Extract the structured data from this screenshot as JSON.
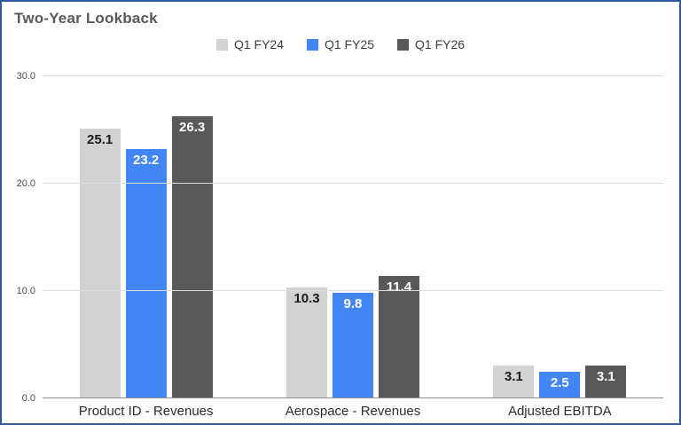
{
  "chart": {
    "border_color": "#2e5b9f",
    "title_color": "#595959"
  },
  "chart_data": {
    "type": "bar",
    "title": "Two-Year Lookback",
    "xlabel": "",
    "ylabel": "",
    "categories": [
      "Product ID - Revenues",
      "Aerospace - Revenues",
      "Adjusted EBITDA"
    ],
    "series": [
      {
        "name": "Q1 FY24",
        "color": "#d2d2d2",
        "label_color": "#1a1a1a",
        "values": [
          25.1,
          10.3,
          3.1
        ]
      },
      {
        "name": "Q1 FY25",
        "color": "#4285f4",
        "label_color": "#ffffff",
        "values": [
          23.2,
          9.8,
          2.5
        ]
      },
      {
        "name": "Q1 FY26",
        "color": "#595959",
        "label_color": "#ffffff",
        "values": [
          26.3,
          11.4,
          3.1
        ]
      }
    ],
    "ylim": [
      0,
      30
    ],
    "yticks": [
      {
        "value": 0,
        "label": "0.0"
      },
      {
        "value": 10,
        "label": "10.0"
      },
      {
        "value": 20,
        "label": "20.0"
      },
      {
        "value": 30,
        "label": "30.0"
      }
    ],
    "legend_position": "top-center",
    "grid": true
  }
}
